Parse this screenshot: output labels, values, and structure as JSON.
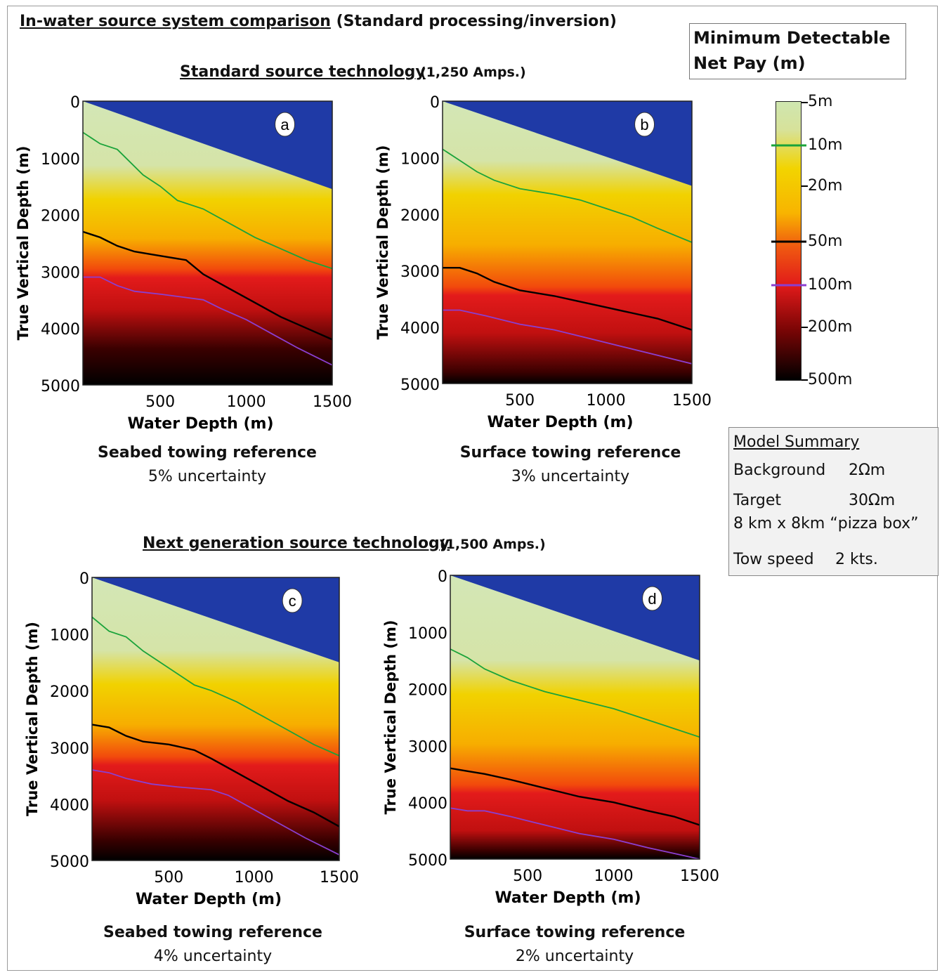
{
  "title": {
    "part1": "In-water source system comparison",
    "part2": " (Standard processing/inversion)"
  },
  "sections": [
    {
      "title": "Standard source technology",
      "amps": "(1,250 Amps.)"
    },
    {
      "title": "Next generation source technology",
      "amps": "(1,500 Amps.)"
    }
  ],
  "legend": {
    "title_line1": "Minimum Detectable",
    "title_line2": "Net Pay (m)",
    "levels": [
      "5m",
      "10m",
      "20m",
      "50m",
      "100m",
      "200m",
      "500m"
    ],
    "contour_colors": {
      "10m": "#1aa33a",
      "50m": "#000000",
      "100m": "#8a3fd1"
    }
  },
  "model_summary": {
    "title": "Model Summary",
    "background_label": "Background",
    "background_value": "2Ωm",
    "target_label": "Target",
    "target_value": "30Ωm",
    "target_size": "8 km x 8km “pizza box”",
    "tow_label": "Tow speed",
    "tow_value": "2 kts."
  },
  "chart_data": [
    {
      "type": "heatmap",
      "panel": "a",
      "xlabel": "Water Depth (m)",
      "ylabel": "True Vertical Depth (m)",
      "xlim": [
        50,
        1500
      ],
      "ylim": [
        5000,
        0
      ],
      "xticks": [
        "500",
        "1000",
        "1500"
      ],
      "yticks": [
        "0",
        "1000",
        "2000",
        "3000",
        "4000",
        "5000"
      ],
      "caption_line1": "Seabed towing reference",
      "caption_line2": "5% uncertainty",
      "seabed_depth_at_x": [
        [
          50,
          0
        ],
        [
          1500,
          1550
        ]
      ],
      "contours": {
        "10m": [
          [
            50,
            550
          ],
          [
            150,
            750
          ],
          [
            250,
            850
          ],
          [
            300,
            1000
          ],
          [
            400,
            1300
          ],
          [
            500,
            1500
          ],
          [
            600,
            1750
          ],
          [
            750,
            1900
          ],
          [
            900,
            2150
          ],
          [
            1050,
            2400
          ],
          [
            1200,
            2600
          ],
          [
            1350,
            2800
          ],
          [
            1500,
            2950
          ]
        ],
        "50m": [
          [
            50,
            2300
          ],
          [
            150,
            2400
          ],
          [
            250,
            2550
          ],
          [
            350,
            2650
          ],
          [
            450,
            2700
          ],
          [
            650,
            2800
          ],
          [
            750,
            3050
          ],
          [
            900,
            3300
          ],
          [
            1050,
            3550
          ],
          [
            1200,
            3800
          ],
          [
            1350,
            4000
          ],
          [
            1500,
            4200
          ]
        ],
        "100m": [
          [
            50,
            3100
          ],
          [
            150,
            3100
          ],
          [
            250,
            3250
          ],
          [
            350,
            3350
          ],
          [
            500,
            3400
          ],
          [
            750,
            3500
          ],
          [
            850,
            3650
          ],
          [
            1000,
            3850
          ],
          [
            1150,
            4100
          ],
          [
            1300,
            4350
          ],
          [
            1500,
            4650
          ]
        ]
      }
    },
    {
      "type": "heatmap",
      "panel": "b",
      "xlabel": "Water Depth (m)",
      "ylabel": "True Vertical Depth (m)",
      "xlim": [
        50,
        1500
      ],
      "ylim": [
        5000,
        0
      ],
      "xticks": [
        "500",
        "1000",
        "1500"
      ],
      "yticks": [
        "0",
        "1000",
        "2000",
        "3000",
        "4000",
        "5000"
      ],
      "caption_line1": "Surface towing reference",
      "caption_line2": "3% uncertainty",
      "seabed_depth_at_x": [
        [
          50,
          0
        ],
        [
          1500,
          1500
        ]
      ],
      "contours": {
        "10m": [
          [
            50,
            850
          ],
          [
            150,
            1050
          ],
          [
            250,
            1250
          ],
          [
            350,
            1400
          ],
          [
            500,
            1550
          ],
          [
            700,
            1650
          ],
          [
            850,
            1750
          ],
          [
            1000,
            1900
          ],
          [
            1150,
            2050
          ],
          [
            1300,
            2250
          ],
          [
            1500,
            2500
          ]
        ],
        "50m": [
          [
            50,
            2950
          ],
          [
            150,
            2950
          ],
          [
            250,
            3050
          ],
          [
            350,
            3200
          ],
          [
            500,
            3350
          ],
          [
            700,
            3450
          ],
          [
            850,
            3550
          ],
          [
            1000,
            3650
          ],
          [
            1150,
            3750
          ],
          [
            1300,
            3850
          ],
          [
            1500,
            4050
          ]
        ],
        "100m": [
          [
            50,
            3700
          ],
          [
            150,
            3700
          ],
          [
            300,
            3800
          ],
          [
            500,
            3950
          ],
          [
            700,
            4050
          ],
          [
            900,
            4200
          ],
          [
            1100,
            4350
          ],
          [
            1300,
            4500
          ],
          [
            1500,
            4650
          ]
        ]
      }
    },
    {
      "type": "heatmap",
      "panel": "c",
      "xlabel": "Water Depth (m)",
      "ylabel": "True Vertical Depth (m)",
      "xlim": [
        50,
        1500
      ],
      "ylim": [
        5000,
        0
      ],
      "xticks": [
        "500",
        "1000",
        "1500"
      ],
      "yticks": [
        "0",
        "1000",
        "2000",
        "3000",
        "4000",
        "5000"
      ],
      "caption_line1": "Seabed towing reference",
      "caption_line2": "4% uncertainty",
      "seabed_depth_at_x": [
        [
          50,
          0
        ],
        [
          1500,
          1500
        ]
      ],
      "contours": {
        "10m": [
          [
            50,
            700
          ],
          [
            150,
            950
          ],
          [
            250,
            1050
          ],
          [
            350,
            1300
          ],
          [
            450,
            1500
          ],
          [
            550,
            1700
          ],
          [
            650,
            1900
          ],
          [
            750,
            2000
          ],
          [
            900,
            2200
          ],
          [
            1050,
            2450
          ],
          [
            1200,
            2700
          ],
          [
            1350,
            2950
          ],
          [
            1500,
            3150
          ]
        ],
        "50m": [
          [
            50,
            2600
          ],
          [
            150,
            2650
          ],
          [
            250,
            2800
          ],
          [
            350,
            2900
          ],
          [
            500,
            2950
          ],
          [
            650,
            3050
          ],
          [
            750,
            3200
          ],
          [
            900,
            3450
          ],
          [
            1050,
            3700
          ],
          [
            1200,
            3950
          ],
          [
            1350,
            4150
          ],
          [
            1500,
            4400
          ]
        ],
        "100m": [
          [
            50,
            3400
          ],
          [
            150,
            3450
          ],
          [
            250,
            3550
          ],
          [
            400,
            3650
          ],
          [
            550,
            3700
          ],
          [
            750,
            3750
          ],
          [
            850,
            3850
          ],
          [
            1000,
            4100
          ],
          [
            1150,
            4350
          ],
          [
            1300,
            4600
          ],
          [
            1500,
            4900
          ]
        ]
      }
    },
    {
      "type": "heatmap",
      "panel": "d",
      "xlabel": "Water Depth (m)",
      "ylabel": "True Vertical Depth (m)",
      "xlim": [
        50,
        1500
      ],
      "ylim": [
        5000,
        0
      ],
      "xticks": [
        "500",
        "1000",
        "1500"
      ],
      "yticks": [
        "0",
        "1000",
        "2000",
        "3000",
        "4000",
        "5000"
      ],
      "caption_line1": "Surface towing reference",
      "caption_line2": "2% uncertainty",
      "seabed_depth_at_x": [
        [
          50,
          0
        ],
        [
          1500,
          1500
        ]
      ],
      "contours": {
        "10m": [
          [
            50,
            1300
          ],
          [
            150,
            1450
          ],
          [
            250,
            1650
          ],
          [
            400,
            1850
          ],
          [
            600,
            2050
          ],
          [
            800,
            2200
          ],
          [
            1000,
            2350
          ],
          [
            1200,
            2550
          ],
          [
            1350,
            2700
          ],
          [
            1500,
            2850
          ]
        ],
        "50m": [
          [
            50,
            3400
          ],
          [
            150,
            3450
          ],
          [
            250,
            3500
          ],
          [
            400,
            3600
          ],
          [
            600,
            3750
          ],
          [
            800,
            3900
          ],
          [
            1000,
            4000
          ],
          [
            1200,
            4150
          ],
          [
            1350,
            4250
          ],
          [
            1500,
            4400
          ]
        ],
        "100m": [
          [
            50,
            4100
          ],
          [
            150,
            4150
          ],
          [
            250,
            4150
          ],
          [
            400,
            4250
          ],
          [
            600,
            4400
          ],
          [
            800,
            4550
          ],
          [
            1000,
            4650
          ],
          [
            1200,
            4800
          ],
          [
            1350,
            4900
          ],
          [
            1500,
            5000
          ]
        ]
      }
    }
  ]
}
